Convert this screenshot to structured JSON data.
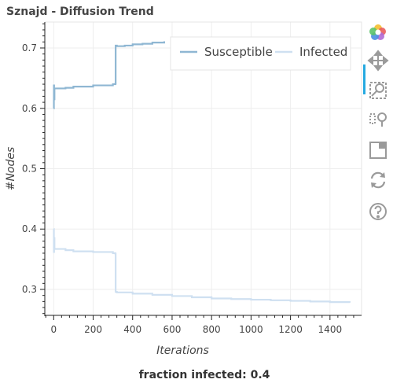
{
  "chart_data": {
    "type": "line",
    "title": "Sznajd - Diffusion Trend",
    "xlabel": "Iterations",
    "ylabel": "#Nodes",
    "xlim": [
      -45,
      1560
    ],
    "ylim": [
      0.257,
      0.743
    ],
    "x_ticks": [
      0,
      200,
      400,
      600,
      800,
      1000,
      1200,
      1400
    ],
    "y_ticks": [
      0.3,
      0.4,
      0.5,
      0.6,
      0.7
    ],
    "x_tick_labels": [
      "0",
      "200",
      "400",
      "600",
      "800",
      "1000",
      "1200",
      "1400"
    ],
    "y_tick_labels": [
      "0.3",
      "0.4",
      "0.5",
      "0.6",
      "0.7"
    ],
    "grid": true,
    "legend_position": "top-right",
    "series": [
      {
        "name": "Susceptible",
        "color": "#8fb7d3",
        "x": [
          0,
          1,
          2,
          4,
          20,
          60,
          100,
          200,
          300,
          313,
          314,
          316,
          320,
          360,
          400,
          450,
          500,
          560
        ],
        "y": [
          0.6,
          0.638,
          0.615,
          0.633,
          0.633,
          0.634,
          0.636,
          0.638,
          0.64,
          0.641,
          0.704,
          0.704,
          0.703,
          0.704,
          0.706,
          0.707,
          0.709,
          0.711
        ]
      },
      {
        "name": "Infected",
        "color": "#cfe0f1",
        "x": [
          0,
          1,
          2,
          4,
          20,
          60,
          100,
          200,
          300,
          313,
          314,
          320,
          400,
          500,
          600,
          700,
          800,
          900,
          1000,
          1100,
          1200,
          1300,
          1400,
          1500
        ],
        "y": [
          0.4,
          0.362,
          0.385,
          0.367,
          0.367,
          0.365,
          0.363,
          0.362,
          0.36,
          0.359,
          0.296,
          0.295,
          0.293,
          0.291,
          0.289,
          0.287,
          0.285,
          0.284,
          0.283,
          0.282,
          0.281,
          0.28,
          0.279,
          0.278
        ]
      }
    ]
  },
  "caption": "fraction infected: 0.4",
  "toolbar": {
    "tools": [
      "bokeh-logo-icon",
      "pan-icon",
      "box-zoom-icon",
      "wheel-zoom-icon",
      "save-icon",
      "reset-icon",
      "help-icon"
    ]
  }
}
